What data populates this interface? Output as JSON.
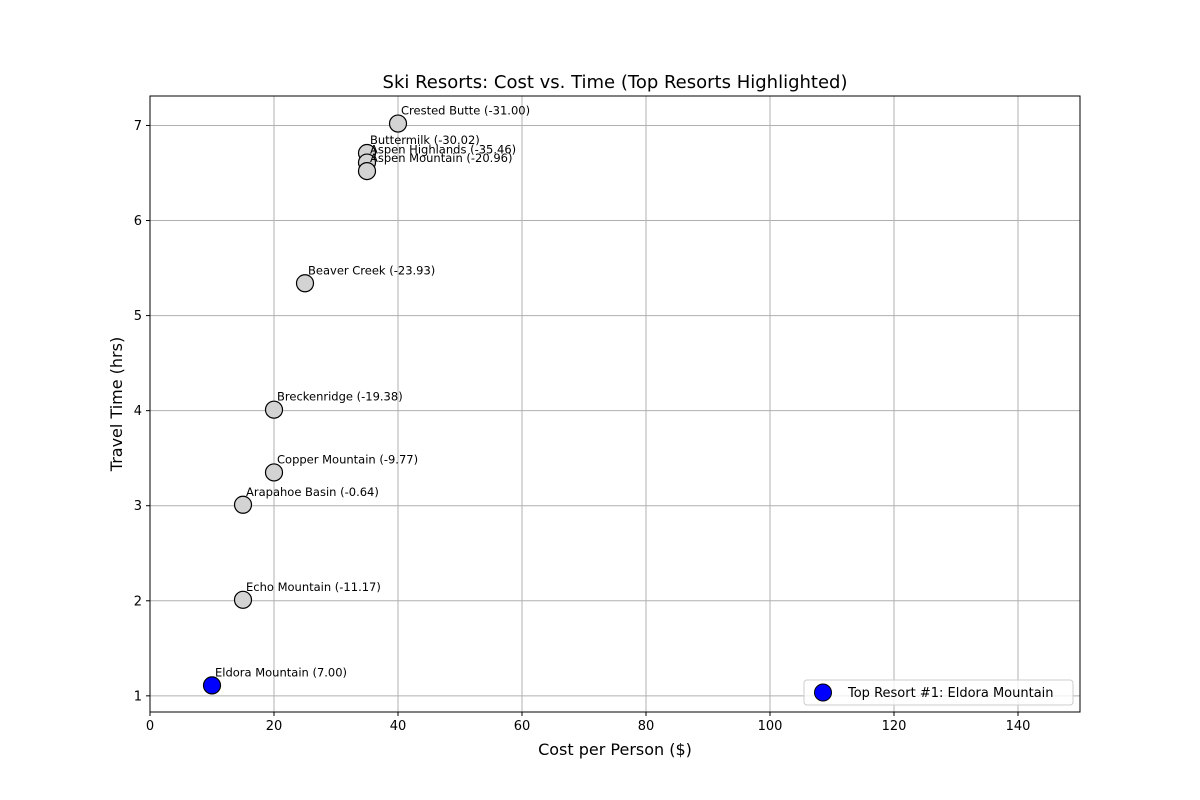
{
  "chart_data": {
    "type": "scatter",
    "title": "Ski Resorts: Cost vs. Time (Top Resorts Highlighted)",
    "xlabel": "Cost per Person ($)",
    "ylabel": "Travel Time (hrs)",
    "xlim": [
      0,
      150
    ],
    "ylim": [
      0.83,
      7.31
    ],
    "xticks": [
      0,
      20,
      40,
      60,
      80,
      100,
      120,
      140
    ],
    "yticks": [
      1,
      2,
      3,
      4,
      5,
      6,
      7
    ],
    "grid": true,
    "points": [
      {
        "name": "Crested Butte",
        "x": 40,
        "y": 7.02,
        "label": "Crested Butte (-31.00)",
        "highlight": false
      },
      {
        "name": "Buttermilk",
        "x": 35,
        "y": 6.71,
        "label": "Buttermilk (-30.02)",
        "highlight": false
      },
      {
        "name": "Aspen Highlands",
        "x": 35,
        "y": 6.61,
        "label": "Aspen Highlands (-35.46)",
        "highlight": false
      },
      {
        "name": "Aspen Mountain",
        "x": 35,
        "y": 6.52,
        "label": "Aspen Mountain (-20.96)",
        "highlight": false
      },
      {
        "name": "Beaver Creek",
        "x": 25,
        "y": 5.34,
        "label": "Beaver Creek (-23.93)",
        "highlight": false
      },
      {
        "name": "Breckenridge",
        "x": 20,
        "y": 4.01,
        "label": "Breckenridge (-19.38)",
        "highlight": false
      },
      {
        "name": "Copper Mountain",
        "x": 20,
        "y": 3.35,
        "label": "Copper Mountain (-9.77)",
        "highlight": false
      },
      {
        "name": "Arapahoe Basin",
        "x": 15,
        "y": 3.01,
        "label": "Arapahoe Basin (-0.64)",
        "highlight": false
      },
      {
        "name": "Echo Mountain",
        "x": 15,
        "y": 2.01,
        "label": "Echo Mountain (-11.17)",
        "highlight": false
      },
      {
        "name": "Eldora Mountain",
        "x": 10,
        "y": 1.11,
        "label": "Eldora Mountain (7.00)",
        "highlight": true
      }
    ],
    "legend": {
      "position": "lower-right",
      "entries": [
        {
          "label": "Top Resort #1: Eldora Mountain",
          "color": "#0000ff"
        }
      ]
    },
    "colors": {
      "default_point": "#d3d3d3",
      "highlight_point": "#0000ff",
      "point_edge": "#000000",
      "grid": "#b0b0b0"
    }
  }
}
